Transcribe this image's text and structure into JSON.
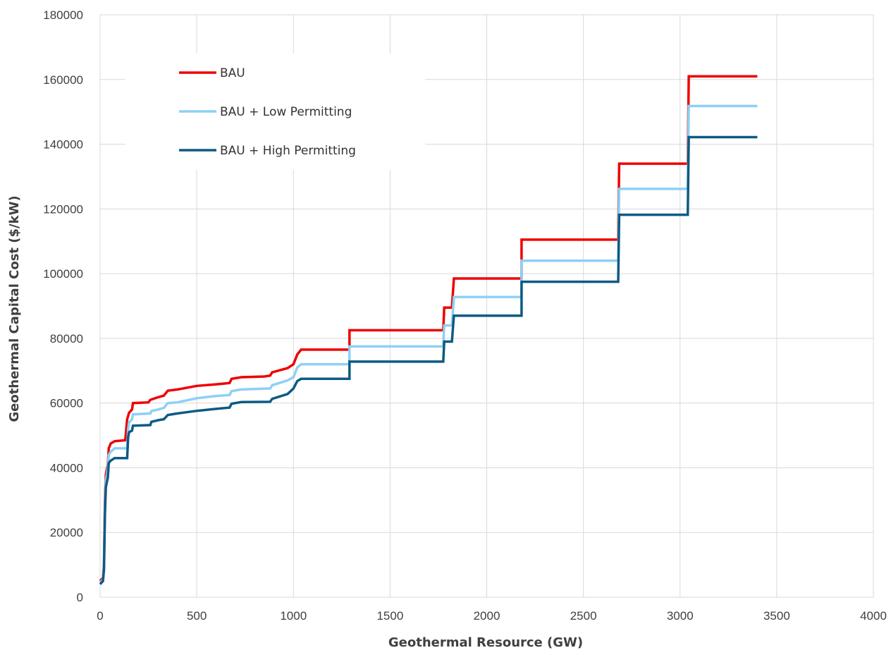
{
  "chart_data": {
    "type": "line",
    "title": "",
    "xlabel": "Geothermal Resource (GW)",
    "ylabel": "Geothermal Capital Cost ($/kW)",
    "xlim": [
      0,
      4000
    ],
    "ylim": [
      0,
      180000
    ],
    "x_ticks": [
      0,
      500,
      1000,
      1500,
      2000,
      2500,
      3000,
      3500,
      4000
    ],
    "y_ticks": [
      0,
      20000,
      40000,
      60000,
      80000,
      100000,
      120000,
      140000,
      160000,
      180000
    ],
    "grid": true,
    "legend_position": "top-left",
    "series": [
      {
        "name": "BAU",
        "color": "#ee0000",
        "points": [
          [
            0,
            5000
          ],
          [
            15,
            6000
          ],
          [
            20,
            10000
          ],
          [
            25,
            30000
          ],
          [
            30,
            38000
          ],
          [
            40,
            41000
          ],
          [
            45,
            46000
          ],
          [
            55,
            47500
          ],
          [
            75,
            48200
          ],
          [
            130,
            48500
          ],
          [
            140,
            55000
          ],
          [
            150,
            57000
          ],
          [
            165,
            58000
          ],
          [
            170,
            60000
          ],
          [
            250,
            60200
          ],
          [
            260,
            61000
          ],
          [
            300,
            61800
          ],
          [
            330,
            62300
          ],
          [
            350,
            63800
          ],
          [
            400,
            64200
          ],
          [
            500,
            65300
          ],
          [
            600,
            65800
          ],
          [
            670,
            66200
          ],
          [
            680,
            67500
          ],
          [
            730,
            68000
          ],
          [
            850,
            68200
          ],
          [
            880,
            68500
          ],
          [
            890,
            69500
          ],
          [
            970,
            70800
          ],
          [
            1000,
            72000
          ],
          [
            1020,
            75000
          ],
          [
            1040,
            76500
          ],
          [
            1290,
            76500
          ],
          [
            1290,
            82500
          ],
          [
            1775,
            82500
          ],
          [
            1780,
            89500
          ],
          [
            1820,
            89500
          ],
          [
            1830,
            98500
          ],
          [
            2180,
            98500
          ],
          [
            2180,
            110500
          ],
          [
            2680,
            110500
          ],
          [
            2685,
            134000
          ],
          [
            3040,
            134000
          ],
          [
            3045,
            161000
          ],
          [
            3400,
            161000
          ]
        ]
      },
      {
        "name": "BAU + Low Permitting",
        "color": "#8dd0f5",
        "points": [
          [
            0,
            4500
          ],
          [
            15,
            5500
          ],
          [
            20,
            9500
          ],
          [
            25,
            28000
          ],
          [
            30,
            36000
          ],
          [
            40,
            40000
          ],
          [
            45,
            44000
          ],
          [
            55,
            45000
          ],
          [
            75,
            46000
          ],
          [
            140,
            46000
          ],
          [
            145,
            52000
          ],
          [
            150,
            54000
          ],
          [
            165,
            55000
          ],
          [
            170,
            56500
          ],
          [
            260,
            56800
          ],
          [
            265,
            57500
          ],
          [
            300,
            58000
          ],
          [
            330,
            58500
          ],
          [
            350,
            60000
          ],
          [
            400,
            60200
          ],
          [
            500,
            61500
          ],
          [
            600,
            62200
          ],
          [
            670,
            62500
          ],
          [
            680,
            63700
          ],
          [
            730,
            64200
          ],
          [
            880,
            64500
          ],
          [
            890,
            65500
          ],
          [
            970,
            67000
          ],
          [
            1000,
            68000
          ],
          [
            1020,
            71000
          ],
          [
            1040,
            72000
          ],
          [
            1290,
            72000
          ],
          [
            1290,
            77500
          ],
          [
            1775,
            77500
          ],
          [
            1780,
            84000
          ],
          [
            1820,
            84000
          ],
          [
            1830,
            92800
          ],
          [
            2180,
            92800
          ],
          [
            2180,
            104000
          ],
          [
            2680,
            104000
          ],
          [
            2685,
            126200
          ],
          [
            3040,
            126200
          ],
          [
            3045,
            151800
          ],
          [
            3400,
            151800
          ]
        ]
      },
      {
        "name": "BAU + High Permitting",
        "color": "#0e5a84",
        "points": [
          [
            0,
            4000
          ],
          [
            15,
            5000
          ],
          [
            20,
            8500
          ],
          [
            25,
            26000
          ],
          [
            30,
            34000
          ],
          [
            40,
            37000
          ],
          [
            45,
            41500
          ],
          [
            55,
            42200
          ],
          [
            75,
            43000
          ],
          [
            140,
            43000
          ],
          [
            145,
            49500
          ],
          [
            150,
            51000
          ],
          [
            165,
            51500
          ],
          [
            170,
            53000
          ],
          [
            260,
            53200
          ],
          [
            265,
            54200
          ],
          [
            300,
            54700
          ],
          [
            330,
            55000
          ],
          [
            350,
            56300
          ],
          [
            400,
            56800
          ],
          [
            500,
            57600
          ],
          [
            600,
            58200
          ],
          [
            670,
            58600
          ],
          [
            680,
            59800
          ],
          [
            730,
            60300
          ],
          [
            880,
            60400
          ],
          [
            890,
            61300
          ],
          [
            970,
            62800
          ],
          [
            1000,
            64500
          ],
          [
            1020,
            66800
          ],
          [
            1040,
            67500
          ],
          [
            1290,
            67500
          ],
          [
            1290,
            72800
          ],
          [
            1775,
            72800
          ],
          [
            1780,
            79000
          ],
          [
            1820,
            79000
          ],
          [
            1830,
            87000
          ],
          [
            2180,
            87000
          ],
          [
            2180,
            97500
          ],
          [
            2680,
            97500
          ],
          [
            2685,
            118200
          ],
          [
            3040,
            118200
          ],
          [
            3045,
            142200
          ],
          [
            3400,
            142200
          ]
        ]
      }
    ]
  }
}
